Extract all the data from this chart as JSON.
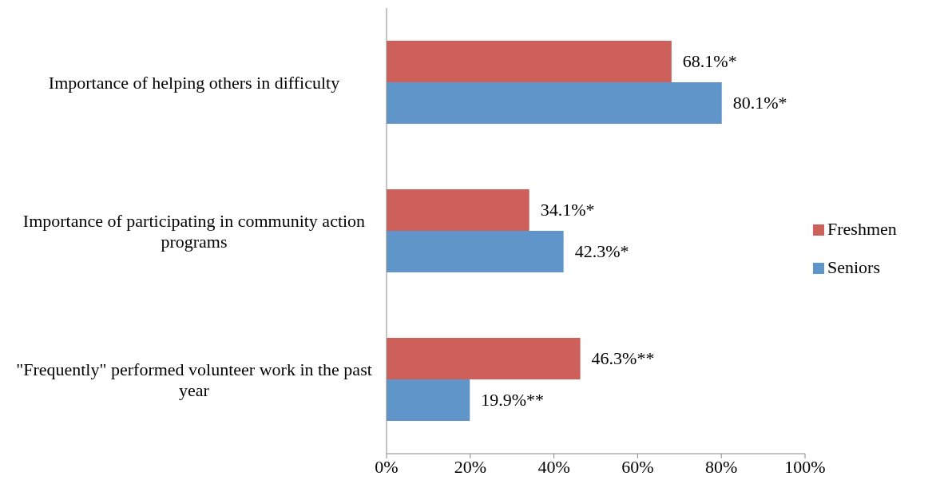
{
  "chart_data": {
    "type": "bar",
    "orientation": "horizontal",
    "categories": [
      "Importance of helping others in difficulty",
      "Importance of participating in community action programs",
      "\"Frequently\" performed volunteer work in the past year"
    ],
    "series": [
      {
        "name": "Freshmen",
        "color": "#cd605b",
        "values": [
          68.1,
          34.1,
          46.3
        ],
        "value_labels": [
          "68.1%*",
          "34.1%*",
          "46.3%**"
        ]
      },
      {
        "name": "Seniors",
        "color": "#6095c9",
        "values": [
          80.1,
          42.3,
          19.9
        ],
        "value_labels": [
          "80.1%*",
          "42.3%*",
          "19.9%**"
        ]
      }
    ],
    "xlim": [
      0,
      100
    ],
    "xticks": [
      {
        "value": 0,
        "label": "0%"
      },
      {
        "value": 20,
        "label": "20%"
      },
      {
        "value": 40,
        "label": "40%"
      },
      {
        "value": 60,
        "label": "60%"
      },
      {
        "value": 80,
        "label": "80%"
      },
      {
        "value": 100,
        "label": "100%"
      }
    ],
    "legend": "right"
  }
}
